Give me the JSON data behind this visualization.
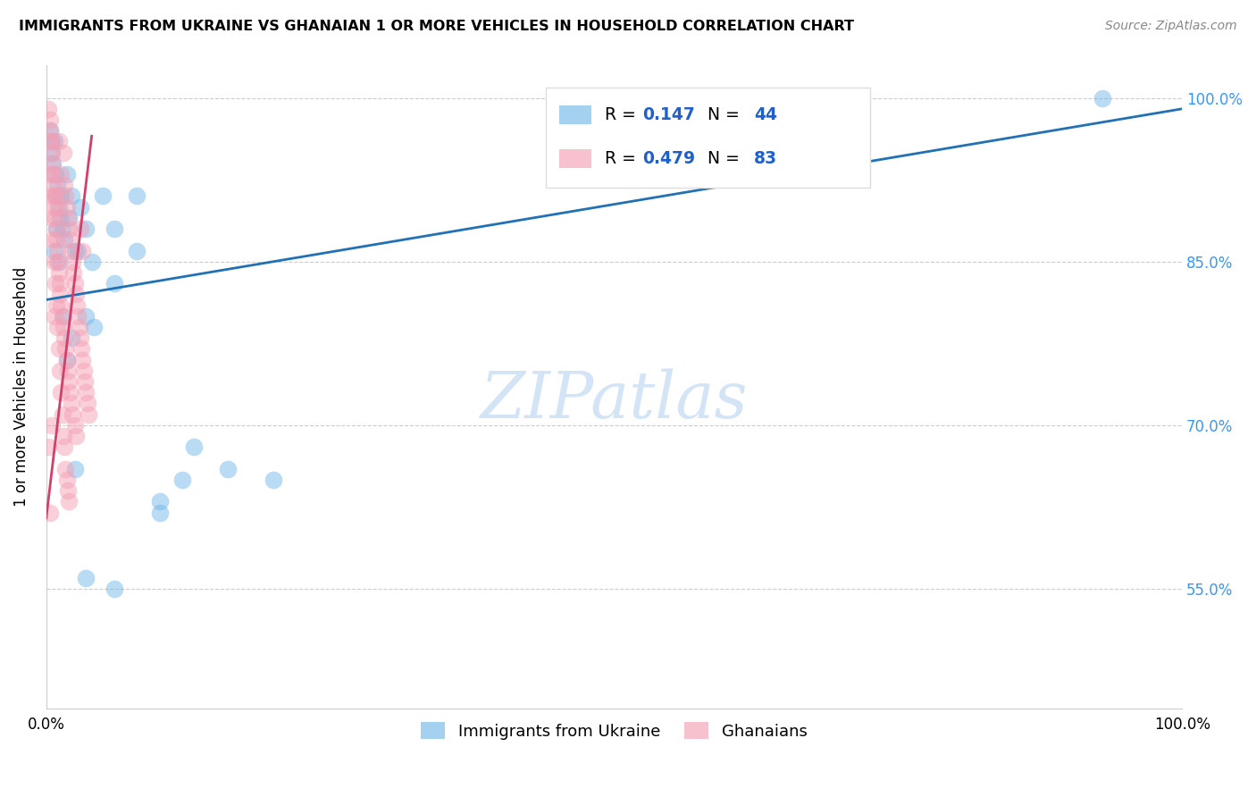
{
  "title": "IMMIGRANTS FROM UKRAINE VS GHANAIAN 1 OR MORE VEHICLES IN HOUSEHOLD CORRELATION CHART",
  "source": "Source: ZipAtlas.com",
  "ylabel": "1 or more Vehicles in Household",
  "legend_ukraine": "Immigrants from Ukraine",
  "legend_ghanaians": "Ghanaians",
  "R_ukraine": 0.147,
  "N_ukraine": 44,
  "R_ghanaians": 0.479,
  "N_ghanaians": 83,
  "color_ukraine": "#74b9e8",
  "color_ghanaians": "#f4a0b5",
  "trendline_ukraine_color": "#2171b5",
  "trendline_ghanaians_color": "#d0406a",
  "watermark_color": "#cce0f5",
  "xlim": [
    0.0,
    1.0
  ],
  "ylim": [
    0.44,
    1.03
  ],
  "ytick_positions": [
    0.55,
    0.7,
    0.85,
    1.0
  ],
  "ytick_labels": [
    "55.0%",
    "70.0%",
    "85.0%",
    "100.0%"
  ],
  "ukraine_trendline_x0": 0.0,
  "ukraine_trendline_x1": 1.0,
  "ukraine_trendline_y0": 0.815,
  "ukraine_trendline_y1": 0.99,
  "ghana_trendline_x0": 0.0,
  "ghana_trendline_x1": 0.04,
  "ghana_trendline_y0": 0.615,
  "ghana_trendline_y1": 0.965,
  "ukraine_x": [
    0.003,
    0.004,
    0.005,
    0.006,
    0.007,
    0.008,
    0.009,
    0.01,
    0.011,
    0.012,
    0.013,
    0.014,
    0.016,
    0.018,
    0.02,
    0.022,
    0.025,
    0.03,
    0.035,
    0.04,
    0.05,
    0.06,
    0.08,
    0.1,
    0.12,
    0.007,
    0.009,
    0.011,
    0.015,
    0.018,
    0.022,
    0.028,
    0.035,
    0.042,
    0.06,
    0.08,
    0.1,
    0.13,
    0.16,
    0.2,
    0.025,
    0.035,
    0.06,
    0.93
  ],
  "ukraine_y": [
    0.97,
    0.96,
    0.95,
    0.94,
    0.96,
    0.93,
    0.91,
    0.92,
    0.9,
    0.89,
    0.91,
    0.88,
    0.87,
    0.93,
    0.89,
    0.91,
    0.86,
    0.9,
    0.88,
    0.85,
    0.91,
    0.83,
    0.91,
    0.63,
    0.65,
    0.86,
    0.88,
    0.85,
    0.8,
    0.76,
    0.78,
    0.86,
    0.8,
    0.79,
    0.88,
    0.86,
    0.62,
    0.68,
    0.66,
    0.65,
    0.66,
    0.56,
    0.55,
    1.0
  ],
  "ghana_x": [
    0.002,
    0.003,
    0.003,
    0.004,
    0.004,
    0.005,
    0.005,
    0.006,
    0.006,
    0.007,
    0.007,
    0.008,
    0.008,
    0.009,
    0.009,
    0.01,
    0.01,
    0.011,
    0.011,
    0.012,
    0.012,
    0.013,
    0.013,
    0.014,
    0.015,
    0.015,
    0.016,
    0.016,
    0.017,
    0.017,
    0.018,
    0.018,
    0.019,
    0.019,
    0.02,
    0.02,
    0.021,
    0.021,
    0.022,
    0.022,
    0.023,
    0.023,
    0.024,
    0.025,
    0.025,
    0.026,
    0.026,
    0.027,
    0.028,
    0.029,
    0.03,
    0.03,
    0.031,
    0.032,
    0.032,
    0.033,
    0.034,
    0.035,
    0.036,
    0.037,
    0.002,
    0.003,
    0.004,
    0.005,
    0.006,
    0.007,
    0.008,
    0.009,
    0.01,
    0.011,
    0.012,
    0.013,
    0.014,
    0.015,
    0.016,
    0.017,
    0.018,
    0.019,
    0.02,
    0.003,
    0.005,
    0.007,
    0.01
  ],
  "ghana_y": [
    0.99,
    0.98,
    0.97,
    0.96,
    0.95,
    0.94,
    0.96,
    0.93,
    0.92,
    0.91,
    0.9,
    0.89,
    0.91,
    0.88,
    0.87,
    0.86,
    0.85,
    0.84,
    0.96,
    0.83,
    0.82,
    0.81,
    0.93,
    0.8,
    0.95,
    0.79,
    0.92,
    0.78,
    0.91,
    0.77,
    0.9,
    0.76,
    0.89,
    0.75,
    0.88,
    0.74,
    0.87,
    0.73,
    0.86,
    0.72,
    0.85,
    0.71,
    0.84,
    0.83,
    0.7,
    0.82,
    0.69,
    0.81,
    0.8,
    0.79,
    0.78,
    0.88,
    0.77,
    0.76,
    0.86,
    0.75,
    0.74,
    0.73,
    0.72,
    0.71,
    0.68,
    0.93,
    0.91,
    0.89,
    0.87,
    0.85,
    0.83,
    0.81,
    0.79,
    0.77,
    0.75,
    0.73,
    0.71,
    0.69,
    0.68,
    0.66,
    0.65,
    0.64,
    0.63,
    0.62,
    0.7,
    0.8,
    0.9
  ]
}
